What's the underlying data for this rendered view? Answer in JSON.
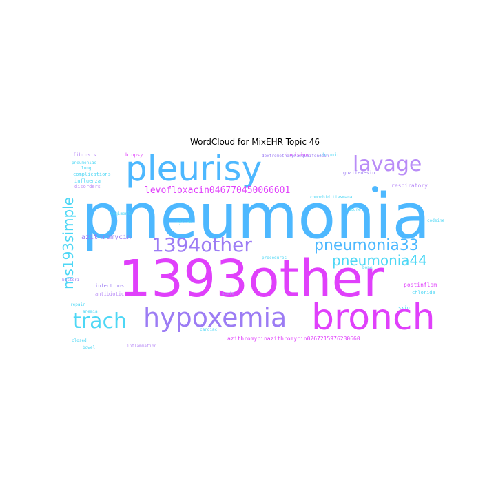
{
  "title": "WordCloud for MixEHR Topic 46",
  "words": {
    "pneumonia": "pneumonia",
    "o1393other": "1393other",
    "pleurisy": "pleurisy",
    "bronch": "bronch",
    "hypoxemia": "hypoxemia",
    "lavage": "lavage",
    "trach": "trach",
    "o1394other": "1394other",
    "pneumonia33": "pneumonia33",
    "pneumonia44": "pneumonia44",
    "ms193simple": "ms193simple",
    "levofloxacin": "levofloxacin046770450066601",
    "azithromycin_long": "azithromycinazithromycin0267215976230660",
    "azithromycin": "azithromycin",
    "respiratory": "respiratory",
    "guaifenesin": "guaifenesin",
    "postinflam": "postinflam",
    "fibrosis": "fibrosis",
    "biopsy": "biopsy",
    "incision": "incision",
    "chronic": "chronic",
    "complications": "complications",
    "influenza": "influenza",
    "disorders": "disorders",
    "lung": "lung",
    "pneumoniae": "pneumoniae",
    "infections": "infections",
    "antibiotic": "antibiotic",
    "bacteri": "bacteri",
    "repair": "repair",
    "anemia": "anemia",
    "chloride": "chloride",
    "skin": "skin",
    "procedures": "procedures",
    "acute": "acute",
    "cardiac": "cardiac",
    "inflammation": "inflammation",
    "system": "system",
    "suture": "suture",
    "codeine": "codeine",
    "bone": "bone",
    "closed": "closed",
    "bowel": "bowel",
    "dextromethorphan": "dextromethorphanguaifenesin",
    "comorbidities": "comorbiditiesmana",
    "regimenla": "regimenla"
  },
  "colors": {
    "blue": "#4db8ff",
    "pink": "#e040fb",
    "purple": "#9c7cf4",
    "cyan": "#4dd7f5"
  }
}
